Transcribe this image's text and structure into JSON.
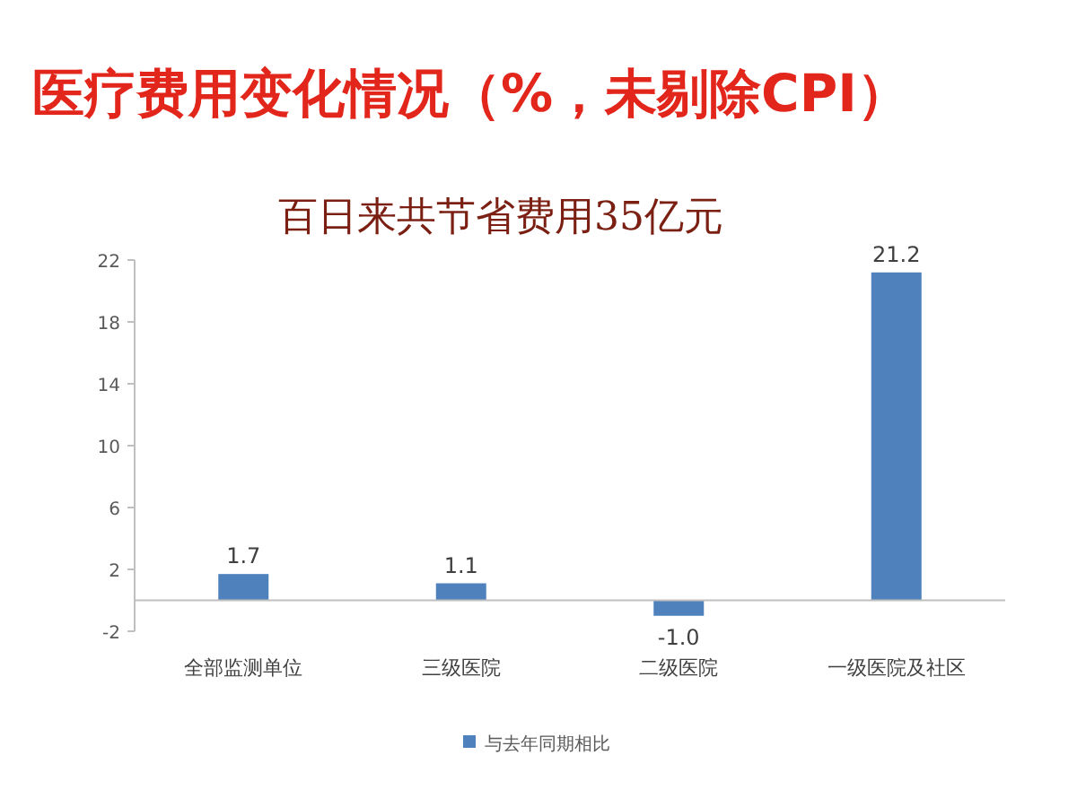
{
  "chart_data": {
    "type": "bar",
    "title": "医疗费用变化情况（%，未剔除CPI）",
    "subtitle": "百日来共节省费用35亿元",
    "categories": [
      "全部监测单位",
      "三级医院",
      "二级医院",
      "一级医院及社区"
    ],
    "series": [
      {
        "name": "与去年同期相比",
        "color": "#4f81bd",
        "values": [
          1.7,
          1.1,
          -1.0,
          21.2
        ],
        "value_labels": [
          "1.7",
          "1.1",
          "-1.0",
          "21.2"
        ]
      }
    ],
    "ylim": [
      -2,
      22
    ],
    "yticks": [
      -2,
      2,
      6,
      10,
      14,
      18,
      22
    ],
    "legend": "bottom",
    "grid": false
  }
}
